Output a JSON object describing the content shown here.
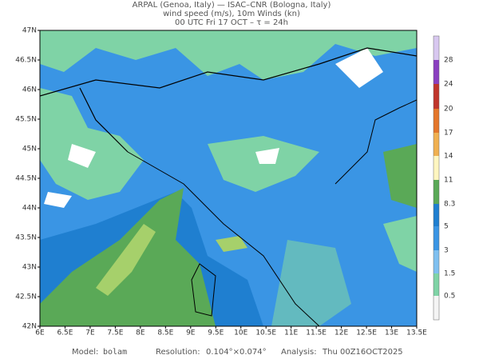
{
  "header": {
    "line1": "ARPAL (Genoa, Italy)  —  ISAC–CNR (Bologna, Italy)",
    "line2": "wind speed (m/s), 10m Winds (kn)",
    "line3": "00 UTC Fri 17 OCT  –  τ = 24h"
  },
  "map": {
    "lon_labels": [
      "6E",
      "6.5E",
      "7E",
      "7.5E",
      "8E",
      "8.5E",
      "9E",
      "9.5E",
      "10E",
      "10.5E",
      "11E",
      "11.5E",
      "12E",
      "12.5E",
      "13E",
      "13.5E"
    ],
    "lat_labels": [
      "47N",
      "46.5N",
      "46N",
      "45.5N",
      "45N",
      "44.5N",
      "44N",
      "43.5N",
      "43N",
      "42.5N",
      "42N"
    ]
  },
  "colorbar": {
    "labels": [
      "28",
      "24",
      "20",
      "17",
      "14",
      "11",
      "8.3",
      "5",
      "3",
      "1.5",
      "0.5"
    ]
  },
  "footer": {
    "model_label": "Model:",
    "model": "bolam",
    "resolution_label": "Resolution:",
    "resolution": "0.104°×0.074°",
    "analysis_label": "Analysis:",
    "analysis": "Thu 00Z16OCT2025"
  }
}
